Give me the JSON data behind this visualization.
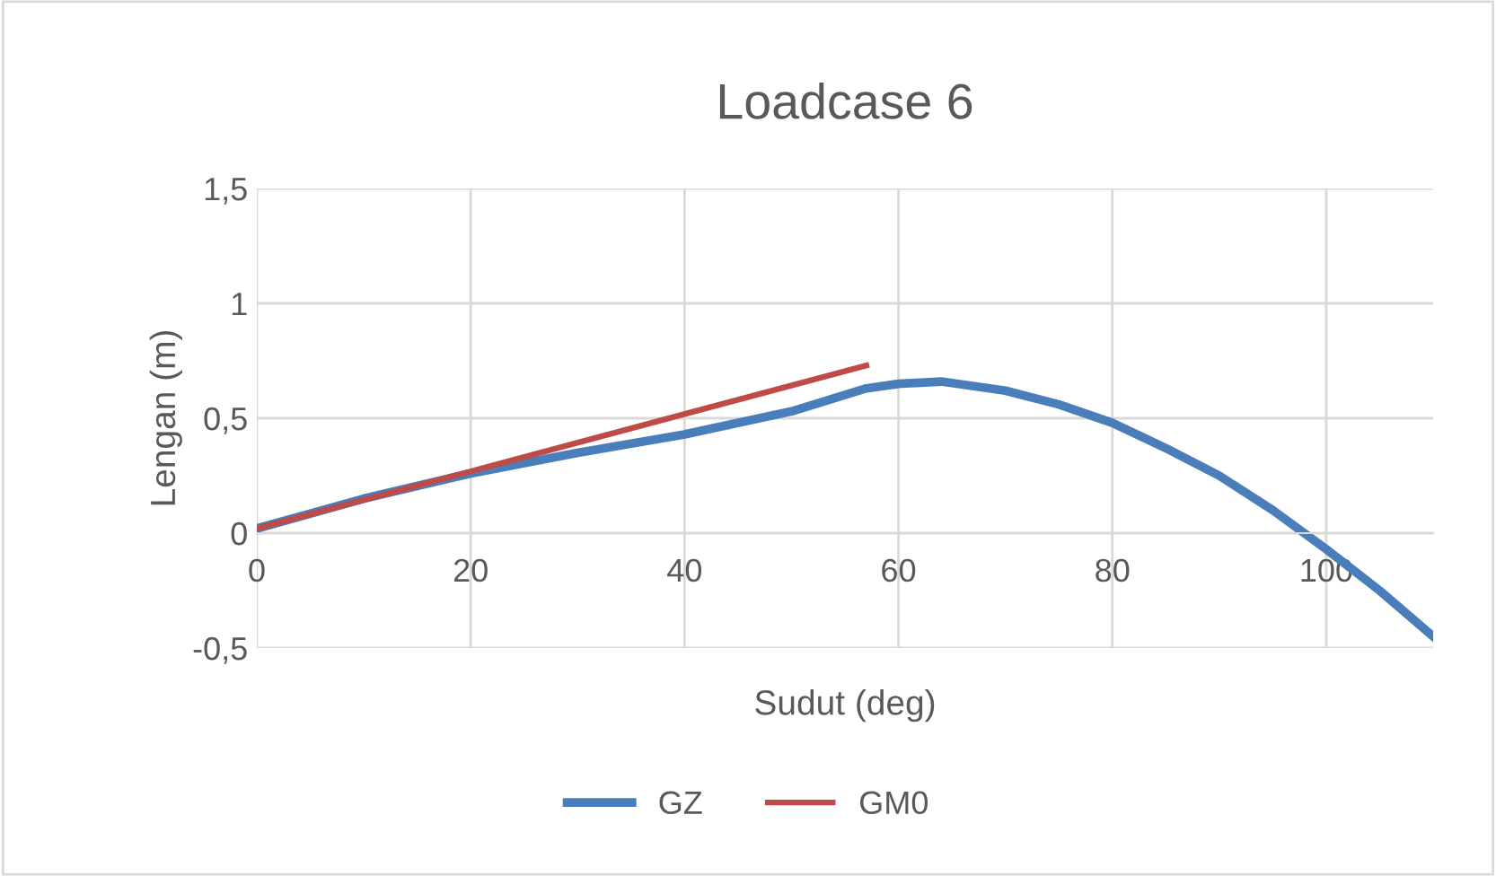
{
  "chart_data": {
    "type": "line",
    "title": "Loadcase 6",
    "xlabel": "Sudut (deg)",
    "ylabel": "Lengan (m)",
    "xlim": [
      0,
      110
    ],
    "xticks": [
      0,
      20,
      40,
      60,
      80,
      100
    ],
    "ylim": [
      -0.5,
      1.5
    ],
    "yticks": [
      {
        "value": -0.5,
        "label": "-0,5"
      },
      0,
      {
        "value": 0.5,
        "label": "0,5"
      },
      1,
      {
        "value": 1.5,
        "label": "1,5"
      }
    ],
    "grid": true,
    "legend": "bottom",
    "marker": "none",
    "line_style": "solid",
    "series": [
      {
        "name": "GZ",
        "color": "#4a7ebb",
        "x": [
          0,
          10,
          20,
          30,
          40,
          50,
          57,
          60,
          64,
          70,
          75,
          80,
          85,
          90,
          95,
          100,
          105,
          110
        ],
        "values": [
          0.02,
          0.15,
          0.26,
          0.35,
          0.43,
          0.53,
          0.63,
          0.65,
          0.66,
          0.62,
          0.56,
          0.48,
          0.37,
          0.25,
          0.1,
          -0.07,
          -0.25,
          -0.45
        ]
      },
      {
        "name": "GM0",
        "color": "#be4b48",
        "x": [
          0,
          57
        ],
        "values": [
          0.02,
          0.73
        ]
      }
    ]
  }
}
